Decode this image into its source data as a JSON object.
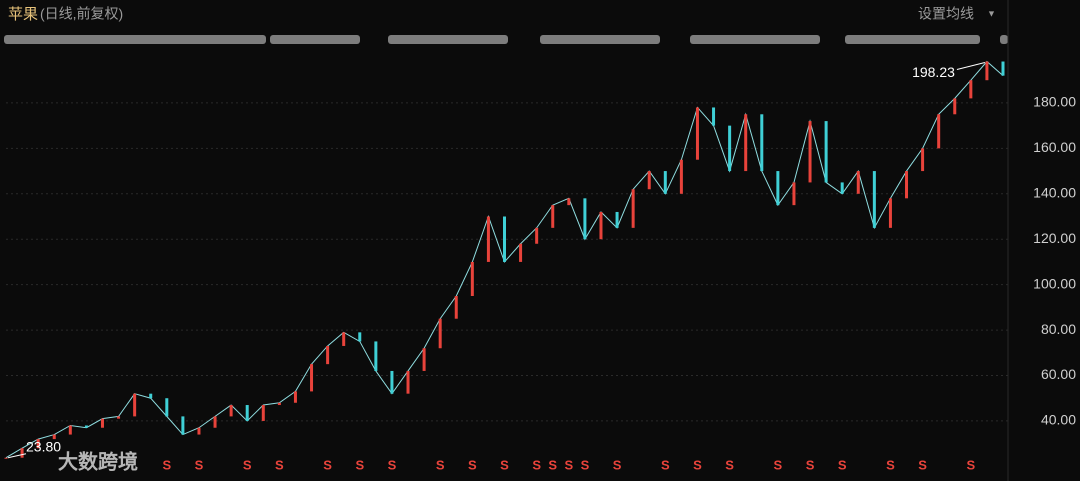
{
  "chart_data": {
    "type": "candle-line",
    "title": "苹果",
    "subtitle": "(日线,前复权)",
    "menu": "设置均线",
    "watermark": "大数跨境",
    "high_label": "198.23",
    "low_label": "23.80",
    "up_color": "#e8433b",
    "down_color": "#3fd0d6",
    "categories": [
      null,
      null,
      null,
      null,
      null,
      null,
      null,
      null,
      null,
      null,
      null,
      null,
      null,
      null,
      null,
      null,
      null,
      null,
      null,
      null,
      null,
      null,
      null,
      null,
      null,
      null,
      null,
      null,
      null,
      null,
      null,
      null,
      null,
      null,
      null,
      null,
      null,
      null,
      null,
      null,
      null,
      null,
      null,
      null,
      null,
      null,
      null,
      null,
      null,
      null,
      null,
      null,
      null,
      null,
      null,
      null,
      null,
      null,
      null,
      null,
      null,
      null,
      null
    ],
    "values": [
      23.8,
      28,
      32,
      34,
      38,
      37,
      41,
      42,
      52,
      50,
      42,
      34,
      37,
      42,
      47,
      40,
      47,
      48,
      53,
      65,
      73,
      79,
      75,
      62,
      52,
      62,
      72,
      85,
      95,
      110,
      130,
      110,
      118,
      125,
      135,
      138,
      120,
      132,
      125,
      142,
      150,
      140,
      155,
      178,
      170,
      150,
      175,
      150,
      135,
      145,
      172,
      145,
      140,
      150,
      125,
      138,
      150,
      160,
      175,
      182,
      190,
      198.23,
      192
    ],
    "event_label": "S",
    "event_points": [
      10,
      12,
      15,
      17,
      20,
      22,
      24,
      27,
      29,
      31,
      33,
      34,
      35,
      36,
      38,
      41,
      43,
      45,
      48,
      50,
      52,
      55,
      57,
      60
    ],
    "ylim": [
      22.8,
      203.3
    ],
    "yticks": [
      {
        "value": 40,
        "label": "40.00"
      },
      {
        "value": 60,
        "label": "60.00"
      },
      {
        "value": 80,
        "label": "80.00"
      },
      {
        "value": 100,
        "label": "100.00"
      },
      {
        "value": 120,
        "label": "120.00"
      },
      {
        "value": 140,
        "label": "140.00"
      },
      {
        "value": 160,
        "label": "160.00"
      },
      {
        "value": 180,
        "label": "180.00"
      }
    ],
    "grid": true
  }
}
